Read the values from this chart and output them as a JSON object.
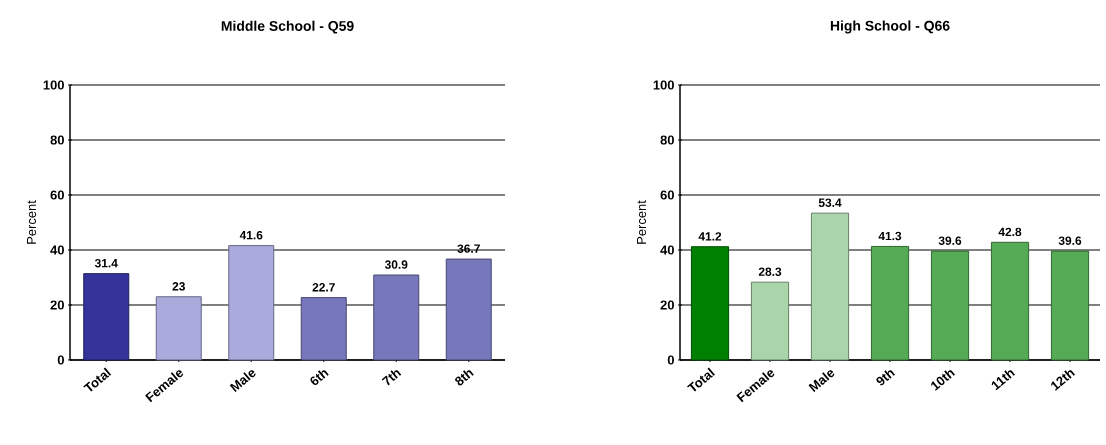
{
  "chart_data": [
    {
      "type": "bar",
      "title": "Middle School - Q59",
      "ylabel": "Percent",
      "categories": [
        "Total",
        "Female",
        "Male",
        "6th",
        "7th",
        "8th"
      ],
      "values": [
        31.4,
        23,
        41.6,
        22.7,
        30.9,
        36.7
      ],
      "colors": [
        "#333399",
        "#aaaadd",
        "#aaaadd",
        "#7777bb",
        "#7777bb",
        "#7777bb"
      ],
      "ylim": [
        0,
        100
      ],
      "yticks": [
        0,
        20,
        40,
        60,
        80,
        100
      ],
      "grid": "y",
      "data_labels": true
    },
    {
      "type": "bar",
      "title": "High School - Q66",
      "ylabel": "Percent",
      "categories": [
        "Total",
        "Female",
        "Male",
        "9th",
        "10th",
        "11th",
        "12th"
      ],
      "values": [
        41.2,
        28.3,
        53.4,
        41.3,
        39.6,
        42.8,
        39.6
      ],
      "colors": [
        "#008000",
        "#aad4aa",
        "#aad4aa",
        "#55aa55",
        "#55aa55",
        "#55aa55",
        "#55aa55"
      ],
      "ylim": [
        0,
        100
      ],
      "yticks": [
        0,
        20,
        40,
        60,
        80,
        100
      ],
      "grid": "y",
      "data_labels": true
    }
  ]
}
